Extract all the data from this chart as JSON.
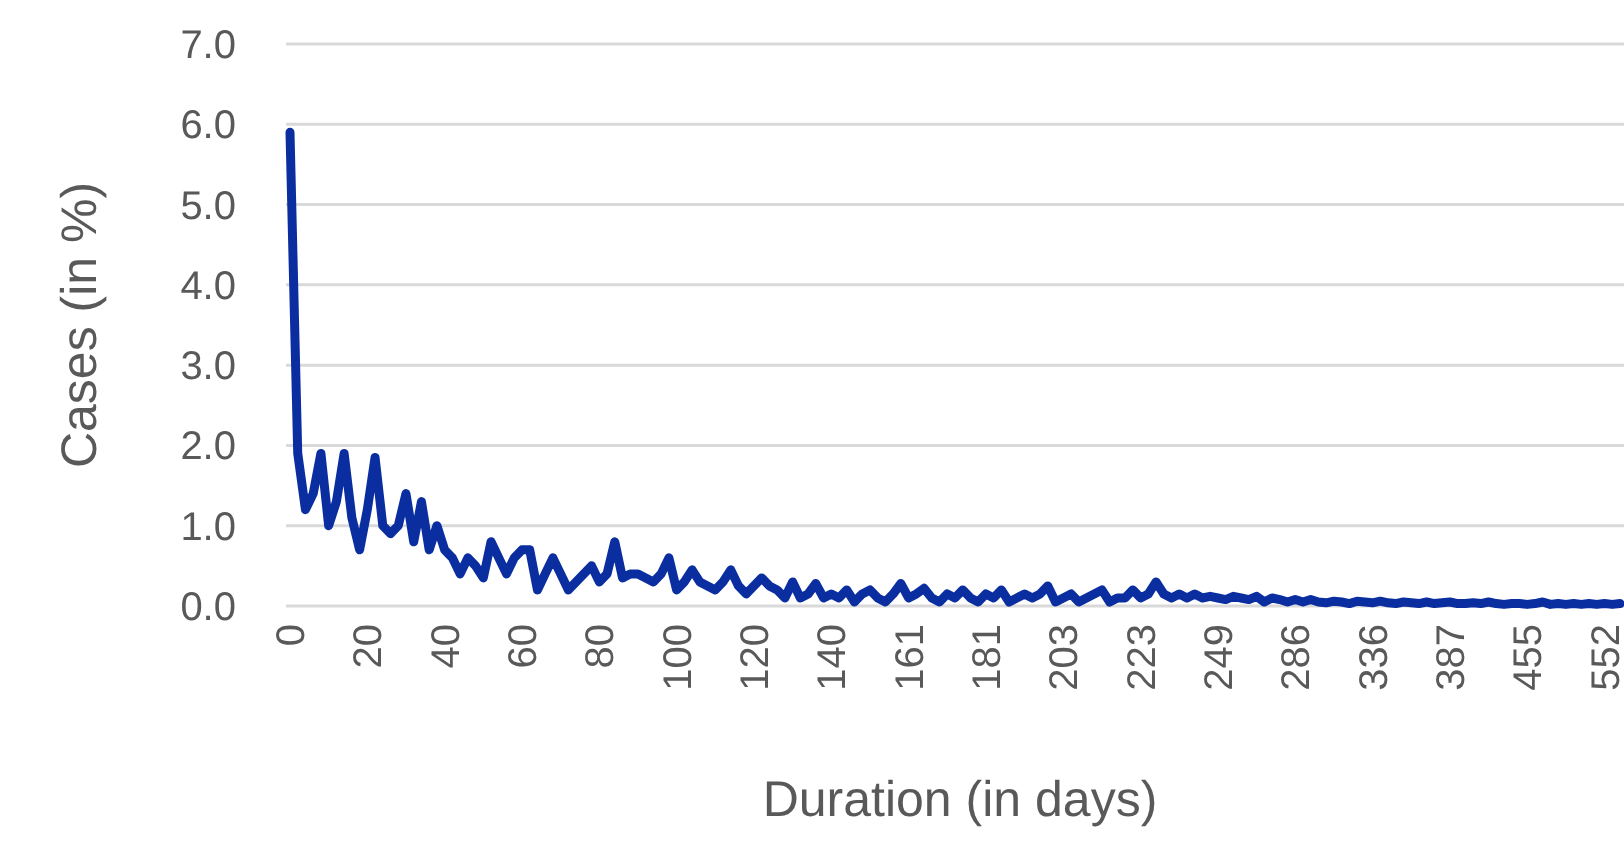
{
  "chart_data": {
    "type": "line",
    "xlabel": "Duration (in days)",
    "ylabel": "Cases (in %)",
    "categories": [
      "0",
      null,
      null,
      null,
      null,
      null,
      null,
      null,
      null,
      null,
      "20",
      null,
      null,
      null,
      null,
      null,
      null,
      null,
      null,
      null,
      "40",
      null,
      null,
      null,
      null,
      null,
      null,
      null,
      null,
      null,
      "60",
      null,
      null,
      null,
      null,
      null,
      null,
      null,
      null,
      null,
      "80",
      null,
      null,
      null,
      null,
      null,
      null,
      null,
      null,
      null,
      "100",
      null,
      null,
      null,
      null,
      null,
      null,
      null,
      null,
      null,
      "120",
      null,
      null,
      null,
      null,
      null,
      null,
      null,
      null,
      null,
      "140",
      null,
      null,
      null,
      null,
      null,
      null,
      null,
      null,
      null,
      "161",
      null,
      null,
      null,
      null,
      null,
      null,
      null,
      null,
      null,
      "181",
      null,
      null,
      null,
      null,
      null,
      null,
      null,
      null,
      null,
      "203",
      null,
      null,
      null,
      null,
      null,
      null,
      null,
      null,
      null,
      "223",
      null,
      null,
      null,
      null,
      null,
      null,
      null,
      null,
      null,
      "249",
      null,
      null,
      null,
      null,
      null,
      null,
      null,
      null,
      null,
      "286",
      null,
      null,
      null,
      null,
      null,
      null,
      null,
      null,
      null,
      "336",
      null,
      null,
      null,
      null,
      null,
      null,
      null,
      null,
      null,
      "387",
      null,
      null,
      null,
      null,
      null,
      null,
      null,
      null,
      null,
      "455",
      null,
      null,
      null,
      null,
      null,
      null,
      null,
      null,
      null,
      "552",
      null,
      null
    ],
    "series": [
      {
        "color": "#0a2ea0",
        "values": [
          5.9,
          1.9,
          1.2,
          1.4,
          1.9,
          1.0,
          1.3,
          1.9,
          1.1,
          0.7,
          1.2,
          1.85,
          1.0,
          0.9,
          1.0,
          1.4,
          0.8,
          1.3,
          0.7,
          1.0,
          0.7,
          0.6,
          0.4,
          0.6,
          0.5,
          0.35,
          0.8,
          0.6,
          0.4,
          0.6,
          0.7,
          0.7,
          0.2,
          0.4,
          0.6,
          0.4,
          0.2,
          0.3,
          0.4,
          0.5,
          0.3,
          0.4,
          0.8,
          0.35,
          0.4,
          0.4,
          0.35,
          0.3,
          0.4,
          0.6,
          0.2,
          0.3,
          0.45,
          0.3,
          0.25,
          0.2,
          0.3,
          0.45,
          0.25,
          0.15,
          0.25,
          0.35,
          0.25,
          0.2,
          0.1,
          0.3,
          0.1,
          0.15,
          0.28,
          0.1,
          0.15,
          0.1,
          0.2,
          0.05,
          0.15,
          0.2,
          0.1,
          0.05,
          0.15,
          0.28,
          0.1,
          0.15,
          0.22,
          0.1,
          0.05,
          0.15,
          0.1,
          0.2,
          0.1,
          0.05,
          0.15,
          0.1,
          0.2,
          0.05,
          0.1,
          0.15,
          0.1,
          0.15,
          0.25,
          0.05,
          0.1,
          0.15,
          0.05,
          0.1,
          0.15,
          0.2,
          0.05,
          0.1,
          0.1,
          0.2,
          0.1,
          0.15,
          0.3,
          0.15,
          0.1,
          0.15,
          0.1,
          0.15,
          0.1,
          0.12,
          0.1,
          0.08,
          0.12,
          0.1,
          0.08,
          0.12,
          0.05,
          0.1,
          0.08,
          0.05,
          0.08,
          0.05,
          0.08,
          0.05,
          0.04,
          0.06,
          0.05,
          0.03,
          0.06,
          0.05,
          0.04,
          0.06,
          0.04,
          0.03,
          0.05,
          0.04,
          0.03,
          0.05,
          0.03,
          0.04,
          0.05,
          0.03,
          0.03,
          0.04,
          0.03,
          0.05,
          0.03,
          0.02,
          0.03,
          0.03,
          0.02,
          0.03,
          0.05,
          0.02,
          0.03,
          0.02,
          0.03,
          0.02,
          0.03,
          0.02,
          0.03,
          0.02,
          0.03
        ]
      }
    ],
    "ylim": [
      0,
      7
    ],
    "yticks": [
      {
        "value": 0,
        "label": "0.0"
      },
      {
        "value": 1,
        "label": "1.0"
      },
      {
        "value": 2,
        "label": "2.0"
      },
      {
        "value": 3,
        "label": "3.0"
      },
      {
        "value": 4,
        "label": "4.0"
      },
      {
        "value": 5,
        "label": "5.0"
      },
      {
        "value": 6,
        "label": "6.0"
      },
      {
        "value": 7,
        "label": "7.0"
      }
    ],
    "grid": "y"
  }
}
